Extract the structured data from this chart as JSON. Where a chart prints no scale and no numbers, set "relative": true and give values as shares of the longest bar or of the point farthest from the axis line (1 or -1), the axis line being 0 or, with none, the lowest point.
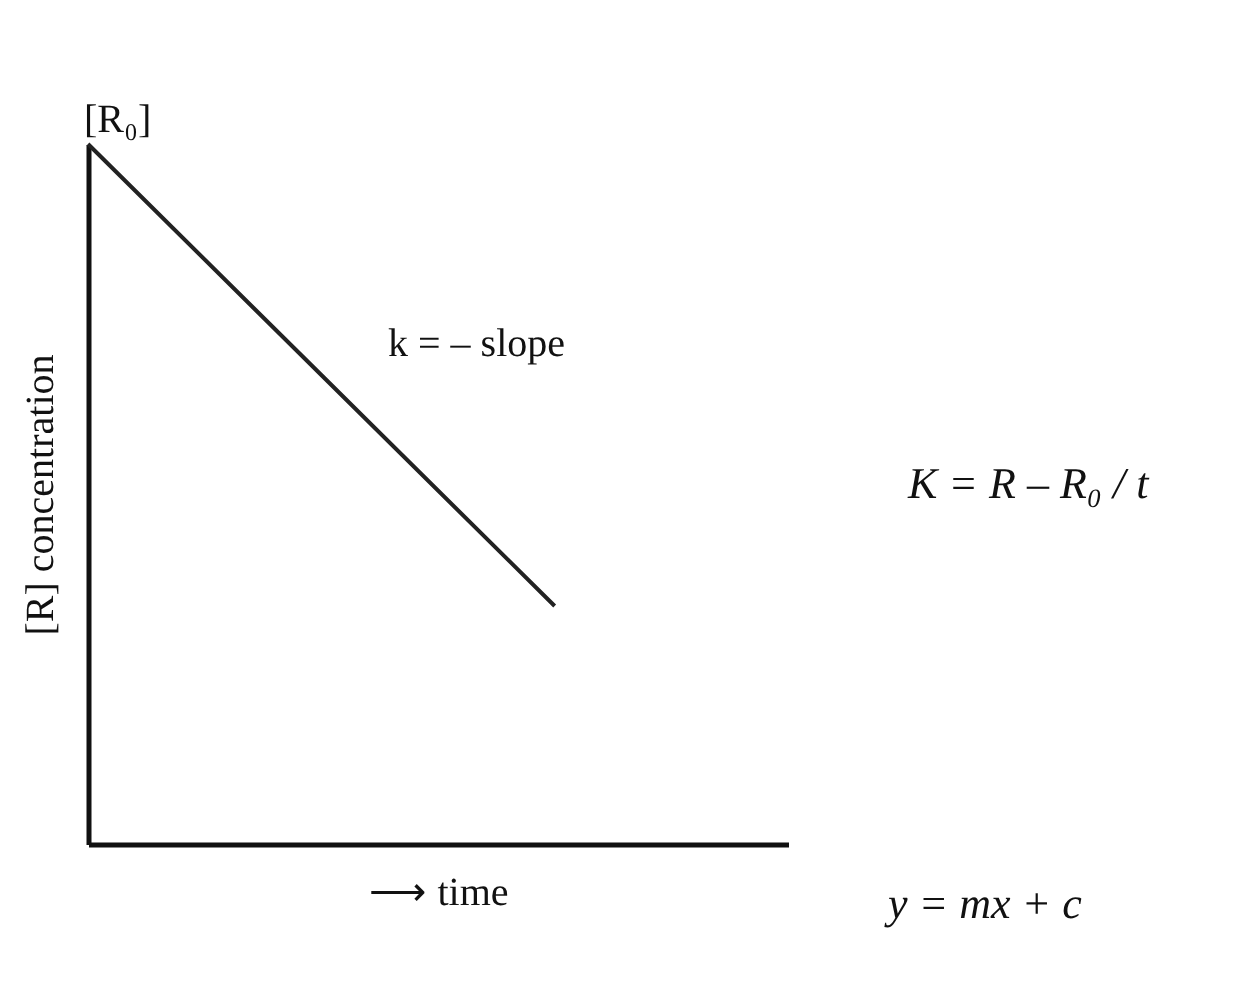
{
  "chart_data": {
    "type": "line",
    "relative": true,
    "xlabel": "⟶ time",
    "ylabel": "[R] concentration",
    "categories": [
      null,
      null,
      null,
      null
    ],
    "series": [
      {
        "color": "#222222",
        "values": [
          1,
          0.67,
          0.34,
          null
        ]
      }
    ],
    "annotations": [
      "[R₀]",
      "k = – slope",
      "K = R – R₀ / t",
      "y = mx + c"
    ],
    "marker": "none",
    "grid": false,
    "tick_labels": false
  }
}
